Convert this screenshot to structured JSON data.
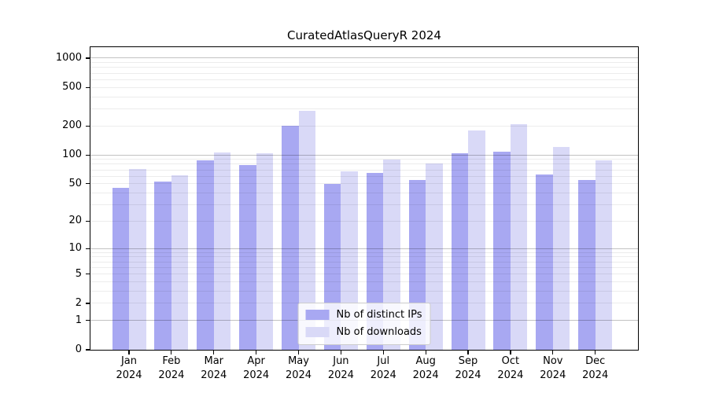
{
  "chart_data": {
    "type": "bar",
    "title": "CuratedAtlasQueryR 2024",
    "categories": [
      "Jan",
      "Feb",
      "Mar",
      "Apr",
      "May",
      "Jun",
      "Jul",
      "Aug",
      "Sep",
      "Oct",
      "Nov",
      "Dec"
    ],
    "year": "2024",
    "series": [
      {
        "name": "Nb of distinct IPs",
        "color": "#a8a8f2",
        "values": [
          45,
          53,
          88,
          78,
          199,
          50,
          65,
          55,
          105,
          108,
          62,
          55
        ]
      },
      {
        "name": "Nb of downloads",
        "color": "#d9d9f7",
        "values": [
          71,
          61,
          106,
          104,
          286,
          68,
          89,
          81,
          180,
          210,
          121,
          88
        ]
      }
    ],
    "yscale": "log10(value+1)",
    "ytick_values": [
      0,
      1,
      2,
      5,
      10,
      20,
      50,
      100,
      200,
      500,
      1000
    ],
    "ytick_labels": [
      "0",
      "1",
      "2",
      "5",
      "10",
      "20",
      "50",
      "100",
      "200",
      "500",
      "1000"
    ],
    "ylim": [
      0,
      1000
    ],
    "grid": "horizontal, log minor + major (powers of 10)",
    "legend_position": "lower center",
    "xlabel": "",
    "ylabel": ""
  }
}
